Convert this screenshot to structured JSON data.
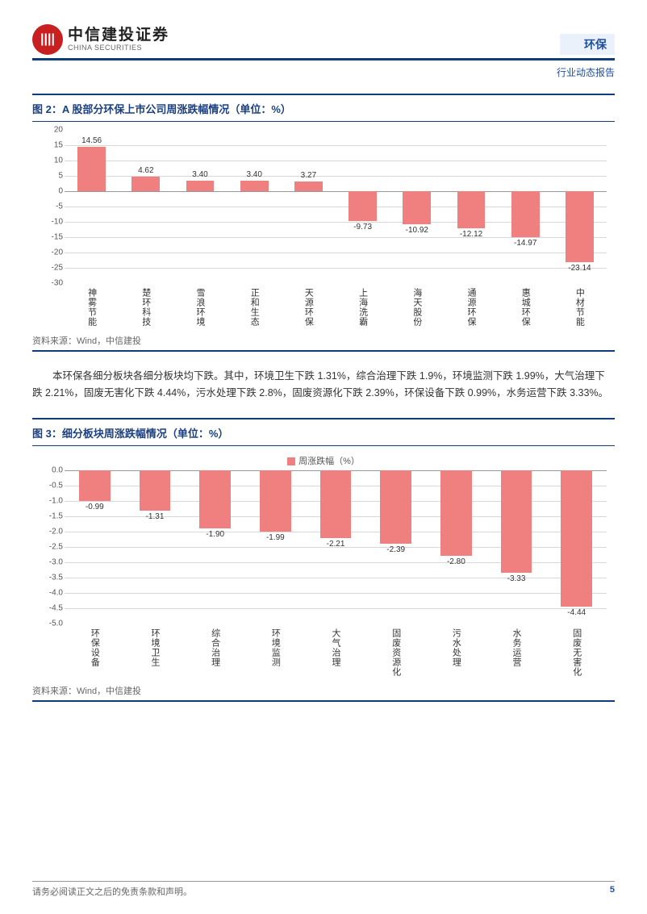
{
  "header": {
    "logo_cn": "中信建投证券",
    "logo_en": "CHINA SECURITIES",
    "sector": "环保",
    "report_type": "行业动态报告"
  },
  "chart1": {
    "title": "图 2：A 股部分环保上市公司周涨跌幅情况（单位：%）",
    "source": "资料来源：Wind，中信建投",
    "type": "bar",
    "ymin": -30,
    "ymax": 20,
    "ytick_step": 5,
    "bar_color": "#f08080",
    "grid_color": "#d8d8d8",
    "label_fontsize": 10,
    "categories": [
      "神雾节能",
      "楚环科技",
      "雪浪环境",
      "正和生态",
      "天源环保",
      "上海洗霸",
      "海天股份",
      "通源环保",
      "惠城环保",
      "中材节能"
    ],
    "values": [
      14.56,
      4.62,
      3.4,
      3.4,
      3.27,
      -9.73,
      -10.92,
      -12.12,
      -14.97,
      -23.14
    ],
    "labels": [
      "14.56",
      "4.62",
      "3.40",
      "3.40",
      "3.27",
      "-9.73",
      "-10.92",
      "-12.12",
      "-14.97",
      "-23.14"
    ]
  },
  "body_paragraph": "本环保各细分板块各细分板块均下跌。其中，环境卫生下跌 1.31%，综合治理下跌 1.9%，环境监测下跌 1.99%，大气治理下跌 2.21%，固废无害化下跌 4.44%，污水处理下跌 2.8%，固废资源化下跌 2.39%，环保设备下跌 0.99%，水务运营下跌 3.33%。",
  "chart2": {
    "title": "图 3：细分板块周涨跌幅情况（单位：%）",
    "source": "资料来源：Wind，中信建投",
    "legend": "周涨跌幅（%）",
    "type": "bar",
    "ymin": -5,
    "ymax": 0,
    "ytick_step": 0.5,
    "bar_color": "#f08080",
    "grid_color": "#d8d8d8",
    "label_fontsize": 10,
    "categories": [
      "环保设备",
      "环境卫生",
      "综合治理",
      "环境监测",
      "大气治理",
      "固废资源化",
      "污水处理",
      "水务运营",
      "固废无害化"
    ],
    "values": [
      -0.99,
      -1.31,
      -1.9,
      -1.99,
      -2.21,
      -2.39,
      -2.8,
      -3.33,
      -4.44
    ],
    "labels": [
      "-0.99",
      "-1.31",
      "-1.90",
      "-1.99",
      "-2.21",
      "-2.39",
      "-2.80",
      "-3.33",
      "-4.44"
    ]
  },
  "footer": {
    "disclaimer": "请务必阅读正文之后的免责条款和声明。",
    "page_number": "5"
  }
}
